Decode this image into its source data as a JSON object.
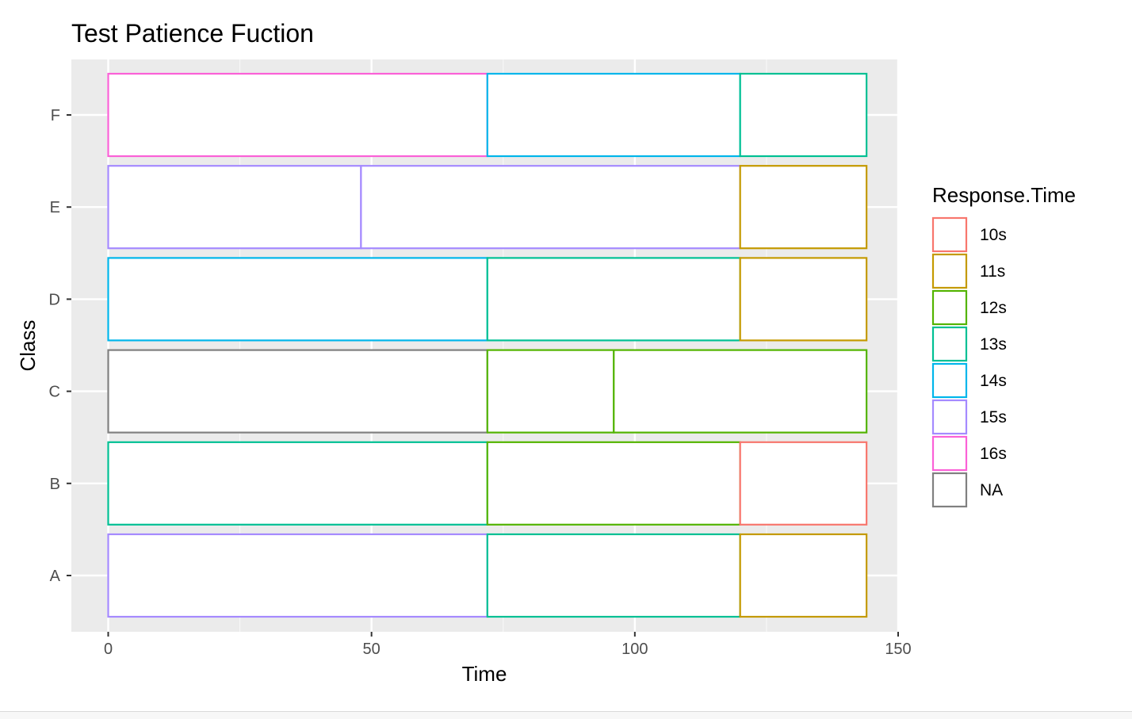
{
  "chart_data": {
    "type": "bar",
    "orientation": "horizontal",
    "stacked": true,
    "title": "Test Patience Fuction",
    "xlabel": "Time",
    "ylabel": "Class",
    "xlim": [
      -7,
      150
    ],
    "x_ticks": [
      0,
      50,
      100,
      150
    ],
    "categories": [
      "A",
      "B",
      "C",
      "D",
      "E",
      "F"
    ],
    "grid": true,
    "legend_position": "right",
    "legend_title": "Response.Time",
    "legend": [
      {
        "label": "10s",
        "color": "#F8766D"
      },
      {
        "label": "11s",
        "color": "#C49A00"
      },
      {
        "label": "12s",
        "color": "#53B400"
      },
      {
        "label": "13s",
        "color": "#00C094"
      },
      {
        "label": "14s",
        "color": "#00B6EB"
      },
      {
        "label": "15s",
        "color": "#A58AFF"
      },
      {
        "label": "16s",
        "color": "#FB61D7"
      },
      {
        "label": "NA",
        "color": "#808080"
      }
    ],
    "segments": [
      {
        "class": "A",
        "start": 0,
        "end": 72,
        "group": "15s"
      },
      {
        "class": "A",
        "start": 72,
        "end": 120,
        "group": "13s"
      },
      {
        "class": "A",
        "start": 120,
        "end": 144,
        "group": "11s"
      },
      {
        "class": "B",
        "start": 0,
        "end": 72,
        "group": "13s"
      },
      {
        "class": "B",
        "start": 72,
        "end": 120,
        "group": "12s"
      },
      {
        "class": "B",
        "start": 120,
        "end": 144,
        "group": "10s"
      },
      {
        "class": "C",
        "start": 0,
        "end": 72,
        "group": "NA"
      },
      {
        "class": "C",
        "start": 72,
        "end": 96,
        "group": "12s"
      },
      {
        "class": "C",
        "start": 96,
        "end": 144,
        "group": "12s"
      },
      {
        "class": "D",
        "start": 0,
        "end": 72,
        "group": "14s"
      },
      {
        "class": "D",
        "start": 72,
        "end": 120,
        "group": "13s"
      },
      {
        "class": "D",
        "start": 120,
        "end": 144,
        "group": "11s"
      },
      {
        "class": "E",
        "start": 0,
        "end": 48,
        "group": "15s"
      },
      {
        "class": "E",
        "start": 48,
        "end": 120,
        "group": "15s"
      },
      {
        "class": "E",
        "start": 120,
        "end": 144,
        "group": "11s"
      },
      {
        "class": "F",
        "start": 0,
        "end": 72,
        "group": "16s"
      },
      {
        "class": "F",
        "start": 72,
        "end": 120,
        "group": "14s"
      },
      {
        "class": "F",
        "start": 120,
        "end": 144,
        "group": "13s"
      }
    ]
  }
}
